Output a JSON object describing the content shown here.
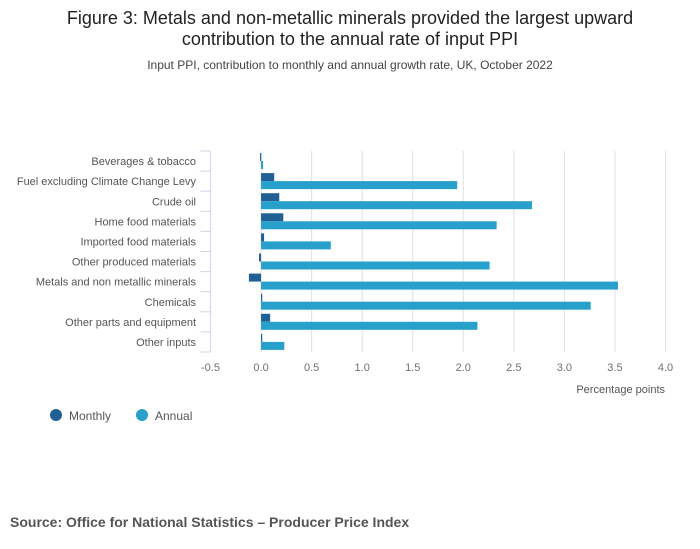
{
  "chart_data": {
    "type": "bar",
    "orientation": "horizontal",
    "title": "Figure 3: Metals and non-metallic minerals provided the largest upward contribution to the annual rate of input PPI",
    "title_lines": [
      "Figure 3: Metals and non-metallic minerals provided the largest upward",
      "contribution to the annual rate of input PPI"
    ],
    "subtitle": "Input PPI, contribution to monthly and annual growth rate, UK, October 2022",
    "categories": [
      "Beverages & tobacco",
      "Fuel excluding Climate Change Levy",
      "Crude oil",
      "Home food materials",
      "Imported food materials",
      "Other produced materials",
      "Metals and non metallic minerals",
      "Chemicals",
      "Other parts and equipment",
      "Other inputs"
    ],
    "series": [
      {
        "name": "Monthly",
        "color": "#206095",
        "values": [
          -0.01,
          0.13,
          0.18,
          0.22,
          0.03,
          -0.02,
          -0.12,
          0.01,
          0.09,
          0.01
        ]
      },
      {
        "name": "Annual",
        "color": "#27a0cc",
        "values": [
          0.02,
          1.94,
          2.68,
          2.33,
          0.69,
          2.26,
          3.53,
          3.26,
          2.14,
          0.23
        ]
      }
    ],
    "xlabel": "Percentage points",
    "xlim": [
      -0.5,
      4.0
    ],
    "xticks": [
      "-0.5",
      "0.0",
      "0.5",
      "1.0",
      "1.5",
      "2.0",
      "2.5",
      "3.0",
      "3.5",
      "4.0"
    ],
    "grid": true,
    "legend_position": "bottom-left"
  },
  "source": "Source: Office for National Statistics – Producer Price Index"
}
